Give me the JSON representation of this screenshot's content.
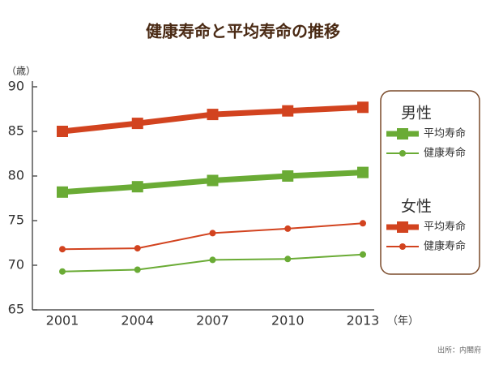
{
  "chart_data": {
    "type": "line",
    "title": "健康寿命と平均寿命の推移",
    "y_label": "（歳）",
    "x_label": "（年）",
    "source": "出所：内閣府",
    "categories": [
      "2001",
      "2004",
      "2007",
      "2010",
      "2013"
    ],
    "ylim": [
      65,
      90
    ],
    "yticks": [
      65,
      70,
      75,
      80,
      85,
      90
    ],
    "grid": false,
    "legend_position": "right",
    "legend_groups": [
      "男性",
      "女性"
    ],
    "series": [
      {
        "name": "平均寿命",
        "group": 0,
        "marker": "square",
        "color": "#6aab35",
        "values": [
          78.2,
          78.8,
          79.5,
          80.0,
          80.4
        ]
      },
      {
        "name": "健康寿命",
        "group": 0,
        "marker": "circle",
        "color": "#6aab35",
        "values": [
          69.3,
          69.5,
          70.6,
          70.7,
          71.2
        ]
      },
      {
        "name": "平均寿命",
        "group": 1,
        "marker": "square",
        "color": "#d2431f",
        "values": [
          85.0,
          85.9,
          86.9,
          87.3,
          87.7
        ]
      },
      {
        "name": "健康寿命",
        "group": 1,
        "marker": "circle",
        "color": "#d2431f",
        "values": [
          71.8,
          71.9,
          73.6,
          74.1,
          74.7
        ]
      }
    ]
  }
}
